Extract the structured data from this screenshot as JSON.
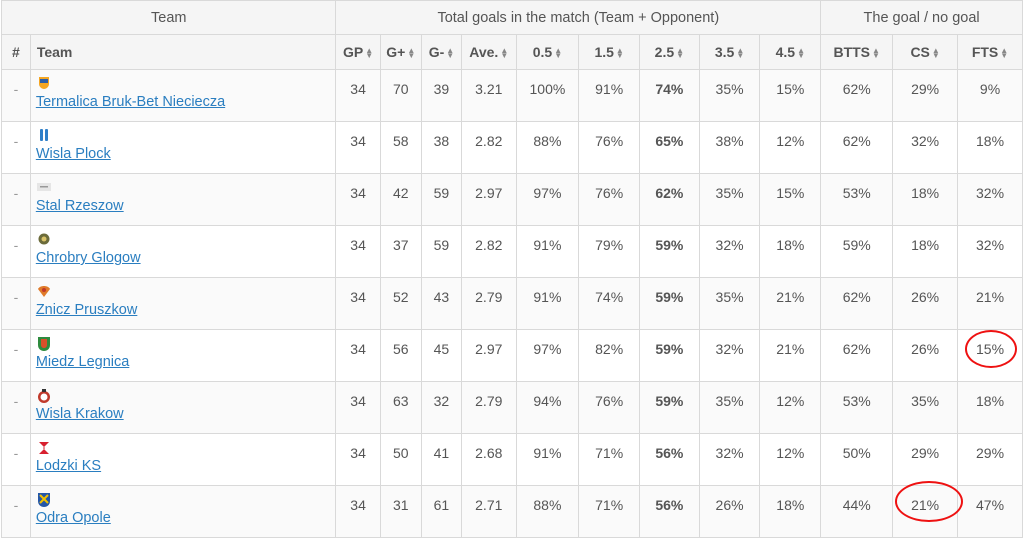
{
  "groups": {
    "team": "Team",
    "total": "Total goals in the match (Team + Opponent)",
    "goal": "The goal / no goal"
  },
  "columns": {
    "rank": "#",
    "team": "Team",
    "gp": "GP",
    "gplus": "G+",
    "gminus": "G-",
    "ave": "Ave.",
    "o05": "0.5",
    "o15": "1.5",
    "o25": "2.5",
    "o35": "3.5",
    "o45": "4.5",
    "btts": "BTTS",
    "cs": "CS",
    "fts": "FTS"
  },
  "rows": [
    {
      "rank": "-",
      "team": "Termalica Bruk-Bet Nieciecza",
      "crest": "termalica-crest-icon",
      "gp": "34",
      "gplus": "70",
      "gminus": "39",
      "ave": "3.21",
      "o05": "100%",
      "o15": "91%",
      "o25": "74%",
      "o35": "35%",
      "o45": "15%",
      "btts": "62%",
      "cs": "29%",
      "fts": "9%"
    },
    {
      "rank": "-",
      "team": "Wisla Plock",
      "crest": "wisla-plock-crest-icon",
      "gp": "34",
      "gplus": "58",
      "gminus": "38",
      "ave": "2.82",
      "o05": "88%",
      "o15": "76%",
      "o25": "65%",
      "o35": "38%",
      "o45": "12%",
      "btts": "62%",
      "cs": "32%",
      "fts": "18%"
    },
    {
      "rank": "-",
      "team": "Stal Rzeszow",
      "crest": "stal-rzeszow-crest-icon",
      "gp": "34",
      "gplus": "42",
      "gminus": "59",
      "ave": "2.97",
      "o05": "97%",
      "o15": "76%",
      "o25": "62%",
      "o35": "35%",
      "o45": "15%",
      "btts": "53%",
      "cs": "18%",
      "fts": "32%"
    },
    {
      "rank": "-",
      "team": "Chrobry Glogow",
      "crest": "chrobry-glogow-crest-icon",
      "gp": "34",
      "gplus": "37",
      "gminus": "59",
      "ave": "2.82",
      "o05": "91%",
      "o15": "79%",
      "o25": "59%",
      "o35": "32%",
      "o45": "18%",
      "btts": "59%",
      "cs": "18%",
      "fts": "32%"
    },
    {
      "rank": "-",
      "team": "Znicz Pruszkow",
      "crest": "znicz-pruszkow-crest-icon",
      "gp": "34",
      "gplus": "52",
      "gminus": "43",
      "ave": "2.79",
      "o05": "91%",
      "o15": "74%",
      "o25": "59%",
      "o35": "35%",
      "o45": "21%",
      "btts": "62%",
      "cs": "26%",
      "fts": "21%"
    },
    {
      "rank": "-",
      "team": "Miedz Legnica",
      "crest": "miedz-legnica-crest-icon",
      "gp": "34",
      "gplus": "56",
      "gminus": "45",
      "ave": "2.97",
      "o05": "97%",
      "o15": "82%",
      "o25": "59%",
      "o35": "32%",
      "o45": "21%",
      "btts": "62%",
      "cs": "26%",
      "fts": "15%"
    },
    {
      "rank": "-",
      "team": "Wisla Krakow",
      "crest": "wisla-krakow-crest-icon",
      "gp": "34",
      "gplus": "63",
      "gminus": "32",
      "ave": "2.79",
      "o05": "94%",
      "o15": "76%",
      "o25": "59%",
      "o35": "35%",
      "o45": "12%",
      "btts": "53%",
      "cs": "35%",
      "fts": "18%"
    },
    {
      "rank": "-",
      "team": "Lodzki KS",
      "crest": "lodzki-ks-crest-icon",
      "gp": "34",
      "gplus": "50",
      "gminus": "41",
      "ave": "2.68",
      "o05": "91%",
      "o15": "71%",
      "o25": "56%",
      "o35": "32%",
      "o45": "12%",
      "btts": "50%",
      "cs": "29%",
      "fts": "29%"
    },
    {
      "rank": "-",
      "team": "Odra Opole",
      "crest": "odra-opole-crest-icon",
      "gp": "34",
      "gplus": "31",
      "gminus": "61",
      "ave": "2.71",
      "o05": "88%",
      "o15": "71%",
      "o25": "56%",
      "o35": "26%",
      "o45": "18%",
      "btts": "44%",
      "cs": "21%",
      "fts": "47%"
    }
  ],
  "annotation_color": "#e11111",
  "link_color": "#2a7ec0"
}
